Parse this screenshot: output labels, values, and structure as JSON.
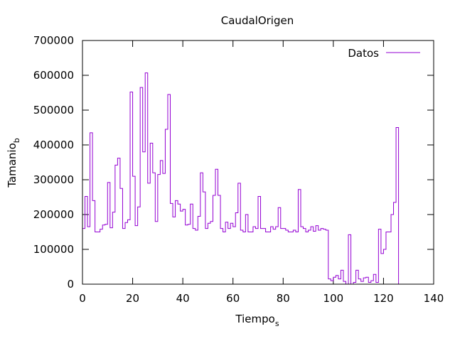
{
  "chart_data": {
    "type": "line",
    "step": true,
    "title": "CaudalOrigen",
    "xlabel": "Tiempo",
    "xlabel_sub": "s",
    "ylabel": "Tamanio",
    "ylabel_sub": "b",
    "xlim": [
      0,
      140
    ],
    "ylim": [
      0,
      700000
    ],
    "xticks": [
      0,
      20,
      40,
      60,
      80,
      100,
      120,
      140
    ],
    "yticks": [
      0,
      100000,
      200000,
      300000,
      400000,
      500000,
      600000,
      700000
    ],
    "grid": false,
    "legend_position": "top-right",
    "series": [
      {
        "name": "Datos",
        "color": "#9400d3",
        "x": [
          0,
          1,
          2,
          3,
          4,
          5,
          6,
          7,
          8,
          9,
          10,
          11,
          12,
          13,
          14,
          15,
          16,
          17,
          18,
          19,
          20,
          21,
          22,
          23,
          24,
          25,
          26,
          27,
          28,
          29,
          30,
          31,
          32,
          33,
          34,
          35,
          36,
          37,
          38,
          39,
          40,
          41,
          42,
          43,
          44,
          45,
          46,
          47,
          48,
          49,
          50,
          51,
          52,
          53,
          54,
          55,
          56,
          57,
          58,
          59,
          60,
          61,
          62,
          63,
          64,
          65,
          66,
          67,
          68,
          69,
          70,
          71,
          72,
          73,
          74,
          75,
          76,
          77,
          78,
          79,
          80,
          81,
          82,
          83,
          84,
          85,
          86,
          87,
          88,
          89,
          90,
          91,
          92,
          93,
          94,
          95,
          96,
          97,
          98,
          99,
          100,
          101,
          102,
          103,
          104,
          105,
          106,
          107,
          108,
          109,
          110,
          111,
          112,
          113,
          114,
          115,
          116,
          117,
          118,
          119,
          120,
          121,
          122,
          123,
          124,
          125,
          126,
          127,
          128
        ],
        "y": [
          160000,
          252000,
          165000,
          435000,
          240000,
          150000,
          150000,
          158000,
          170000,
          172000,
          292000,
          162000,
          207000,
          342000,
          362000,
          275000,
          160000,
          177000,
          185000,
          552000,
          310000,
          168000,
          222000,
          565000,
          380000,
          607000,
          290000,
          405000,
          320000,
          180000,
          315000,
          355000,
          318000,
          445000,
          545000,
          232000,
          193000,
          240000,
          230000,
          210000,
          215000,
          170000,
          172000,
          230000,
          160000,
          155000,
          195000,
          320000,
          265000,
          160000,
          175000,
          180000,
          255000,
          330000,
          255000,
          160000,
          150000,
          178000,
          160000,
          175000,
          165000,
          205000,
          290000,
          155000,
          150000,
          200000,
          150000,
          150000,
          165000,
          160000,
          252000,
          160000,
          160000,
          150000,
          150000,
          165000,
          158000,
          165000,
          220000,
          160000,
          160000,
          155000,
          150000,
          150000,
          155000,
          150000,
          272000,
          165000,
          160000,
          150000,
          155000,
          165000,
          152000,
          168000,
          155000,
          160000,
          158000,
          155000,
          15000,
          10000,
          20000,
          25000,
          15000,
          40000,
          8000,
          0,
          142000,
          0,
          5000,
          40000,
          15000,
          8000,
          18000,
          20000,
          5000,
          10000,
          28000,
          5000,
          158000,
          88000,
          100000,
          150000,
          150000,
          200000,
          235000,
          450000,
          0,
          0,
          0
        ]
      }
    ]
  }
}
